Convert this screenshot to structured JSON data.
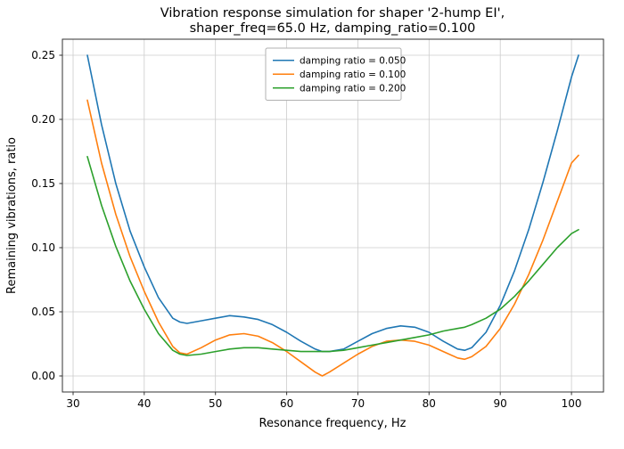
{
  "figure": {
    "title_line1": "Vibration response simulation for shaper '2-hump EI',",
    "title_line2": "shaper_freq=65.0 Hz, damping_ratio=0.100"
  },
  "chart_data": {
    "type": "line",
    "title": "Vibration response simulation for shaper '2-hump EI',\nshaper_freq=65.0 Hz, damping_ratio=0.100",
    "xlabel": "Resonance frequency, Hz",
    "ylabel": "Remaining vibrations, ratio",
    "xlim": [
      28.5,
      104.5
    ],
    "ylim": [
      -0.0125,
      0.2625
    ],
    "grid": true,
    "legend_position": "upper center",
    "grid_color": "#cccccc",
    "spine_color": "#333333",
    "xticks": {
      "values": [
        30,
        40,
        50,
        60,
        70,
        80,
        90,
        100
      ],
      "labels": [
        "30",
        "40",
        "50",
        "60",
        "70",
        "80",
        "90",
        "100"
      ]
    },
    "yticks": {
      "values": [
        0.0,
        0.05,
        0.1,
        0.15,
        0.2,
        0.25
      ],
      "labels": [
        "0.00",
        "0.05",
        "0.10",
        "0.15",
        "0.20",
        "0.25"
      ]
    },
    "x": [
      32,
      34,
      36,
      38,
      40,
      42,
      44,
      45,
      46,
      48,
      50,
      52,
      54,
      56,
      58,
      60,
      62,
      64,
      65,
      66,
      68,
      70,
      72,
      74,
      76,
      78,
      80,
      82,
      84,
      85,
      86,
      88,
      90,
      92,
      94,
      96,
      98,
      100,
      101
    ],
    "series": [
      {
        "name": "damping ratio = 0.050",
        "color": "#1f77b4",
        "values": [
          0.25,
          0.196,
          0.15,
          0.113,
          0.085,
          0.061,
          0.045,
          0.042,
          0.041,
          0.043,
          0.045,
          0.047,
          0.046,
          0.044,
          0.04,
          0.034,
          0.027,
          0.021,
          0.019,
          0.019,
          0.021,
          0.027,
          0.033,
          0.037,
          0.039,
          0.038,
          0.034,
          0.027,
          0.021,
          0.02,
          0.022,
          0.034,
          0.055,
          0.082,
          0.114,
          0.151,
          0.191,
          0.233,
          0.25
        ]
      },
      {
        "name": "damping ratio = 0.100",
        "color": "#ff7f0e",
        "values": [
          0.215,
          0.166,
          0.126,
          0.093,
          0.066,
          0.042,
          0.023,
          0.018,
          0.017,
          0.022,
          0.028,
          0.032,
          0.033,
          0.031,
          0.026,
          0.019,
          0.011,
          0.003,
          0.0,
          0.003,
          0.01,
          0.017,
          0.023,
          0.027,
          0.028,
          0.027,
          0.024,
          0.019,
          0.014,
          0.013,
          0.015,
          0.023,
          0.037,
          0.056,
          0.079,
          0.106,
          0.136,
          0.166,
          0.172
        ]
      },
      {
        "name": "damping ratio = 0.200",
        "color": "#2ca02c",
        "values": [
          0.171,
          0.133,
          0.101,
          0.074,
          0.052,
          0.033,
          0.02,
          0.017,
          0.016,
          0.017,
          0.019,
          0.021,
          0.022,
          0.022,
          0.021,
          0.02,
          0.019,
          0.019,
          0.019,
          0.019,
          0.02,
          0.022,
          0.024,
          0.026,
          0.028,
          0.03,
          0.032,
          0.035,
          0.037,
          0.038,
          0.04,
          0.045,
          0.052,
          0.062,
          0.074,
          0.087,
          0.1,
          0.111,
          0.114
        ]
      }
    ]
  }
}
